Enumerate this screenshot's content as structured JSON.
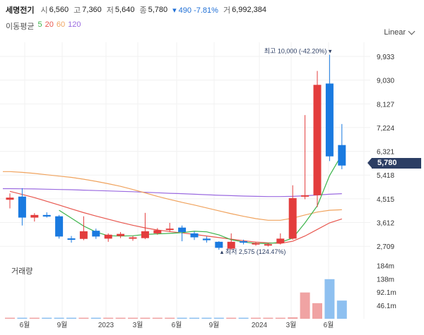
{
  "header": {
    "stock_name": "세명전기",
    "open_label": "시",
    "open_value": "6,560",
    "high_label": "고",
    "high_value": "7,360",
    "low_label": "저",
    "low_value": "5,640",
    "close_label": "종",
    "close_value": "5,780",
    "change": "▾ 490 -7.81%",
    "volume_label": "거",
    "volume_value": "6,992,384"
  },
  "ma_legend": {
    "title": "이동평균",
    "periods": [
      "5",
      "20",
      "60",
      "120"
    ]
  },
  "scale_button": "Linear",
  "volume_title": "거래량",
  "current_price": "5,780",
  "colors": {
    "up": "#e33d3d",
    "down": "#1a7ae0",
    "ma5": "#3cb44b",
    "ma20": "#e8574f",
    "ma60": "#f0a35e",
    "ma120": "#9b6be0",
    "badge": "#2c3e64",
    "vol_up": "#f0a3a3",
    "vol_down": "#8ec0f0"
  },
  "annotations": {
    "high": "최고 10,000 (-42.20%) ▾",
    "low": "▴ 최저 2,575 (124.47%)"
  },
  "chart_data": {
    "type": "candlestick",
    "x_tick_labels": [
      "6월",
      "9월",
      "2023",
      "3월",
      "6월",
      "9월",
      "2024",
      "3월",
      "6월"
    ],
    "y_ticks": [
      "9,933",
      "9,030",
      "8,127",
      "7,224",
      "6,321",
      "5,418",
      "4,515",
      "3,612",
      "2,709"
    ],
    "y_ticks_num": [
      9933,
      9030,
      8127,
      7224,
      6321,
      5418,
      4515,
      3612,
      2709
    ],
    "volume_ticks": [
      "184m",
      "138m",
      "92.1m",
      "46.1m"
    ],
    "volume_ticks_num": [
      184,
      138,
      92.1,
      46.1
    ],
    "candles": [
      {
        "o": 4480,
        "h": 4720,
        "l": 4150,
        "c": 4560
      },
      {
        "o": 4600,
        "h": 4920,
        "l": 3500,
        "c": 3800
      },
      {
        "o": 3800,
        "h": 3970,
        "l": 3650,
        "c": 3900
      },
      {
        "o": 3900,
        "h": 4000,
        "l": 3800,
        "c": 3840
      },
      {
        "o": 3850,
        "h": 3900,
        "l": 3000,
        "c": 3080
      },
      {
        "o": 3010,
        "h": 3100,
        "l": 2850,
        "c": 2960
      },
      {
        "o": 2990,
        "h": 3850,
        "l": 2940,
        "c": 3280
      },
      {
        "o": 3300,
        "h": 3380,
        "l": 2990,
        "c": 3080
      },
      {
        "o": 3000,
        "h": 3200,
        "l": 2880,
        "c": 3150
      },
      {
        "o": 3100,
        "h": 3250,
        "l": 3020,
        "c": 3180
      },
      {
        "o": 3010,
        "h": 3100,
        "l": 2920,
        "c": 3050
      },
      {
        "o": 3020,
        "h": 3980,
        "l": 2980,
        "c": 3280
      },
      {
        "o": 3200,
        "h": 3400,
        "l": 3150,
        "c": 3320
      },
      {
        "o": 3330,
        "h": 3600,
        "l": 3250,
        "c": 3380
      },
      {
        "o": 3420,
        "h": 3500,
        "l": 2900,
        "c": 3250
      },
      {
        "o": 3200,
        "h": 3280,
        "l": 2950,
        "c": 3050
      },
      {
        "o": 3000,
        "h": 3080,
        "l": 2850,
        "c": 2940
      },
      {
        "o": 2880,
        "h": 2900,
        "l": 2575,
        "c": 2650
      },
      {
        "o": 2620,
        "h": 3200,
        "l": 2575,
        "c": 2880
      },
      {
        "o": 2900,
        "h": 2960,
        "l": 2780,
        "c": 2850
      },
      {
        "o": 2790,
        "h": 2870,
        "l": 2730,
        "c": 2830
      },
      {
        "o": 2780,
        "h": 2830,
        "l": 2700,
        "c": 2790
      },
      {
        "o": 2830,
        "h": 3200,
        "l": 2780,
        "c": 3000
      },
      {
        "o": 3000,
        "h": 5030,
        "l": 2960,
        "c": 4540
      },
      {
        "o": 4600,
        "h": 7700,
        "l": 4500,
        "c": 4650
      },
      {
        "o": 4650,
        "h": 9380,
        "l": 4200,
        "c": 8850
      },
      {
        "o": 8900,
        "h": 10000,
        "l": 5950,
        "c": 6130
      },
      {
        "o": 6560,
        "h": 7360,
        "l": 5640,
        "c": 5780
      }
    ],
    "volume": [
      2,
      1,
      0.5,
      0.5,
      0.5,
      0.5,
      0.5,
      0.5,
      0.5,
      0.5,
      0.5,
      0.5,
      1,
      0.5,
      0.5,
      0.5,
      0.5,
      0.5,
      0.5,
      0.5,
      0.5,
      0.5,
      0.5,
      5,
      91,
      54,
      137,
      63
    ],
    "ma": {
      "5": [
        null,
        null,
        null,
        null,
        4080,
        3780,
        3480,
        3250,
        3110,
        3100,
        3110,
        3160,
        3180,
        3200,
        3230,
        3280,
        3260,
        3140,
        2960,
        2870,
        2820,
        2820,
        2860,
        3020,
        3600,
        4250,
        5400,
        6200
      ],
      "20": [
        4800,
        4680,
        4560,
        4420,
        4280,
        4130,
        3990,
        3860,
        3740,
        3620,
        3510,
        3410,
        3330,
        3270,
        3220,
        3160,
        3100,
        3040,
        2980,
        2920,
        2870,
        2840,
        2820,
        2900,
        3100,
        3350,
        3600,
        3750
      ],
      "60": [
        5550,
        5520,
        5480,
        5430,
        5380,
        5330,
        5260,
        5180,
        5090,
        4990,
        4870,
        4740,
        4610,
        4490,
        4380,
        4280,
        4170,
        4060,
        3950,
        3850,
        3760,
        3700,
        3700,
        3780,
        3900,
        4010,
        4080,
        4100
      ],
      "120": [
        4900,
        4895,
        4890,
        4880,
        4870,
        4860,
        4845,
        4830,
        4815,
        4800,
        4785,
        4765,
        4745,
        4725,
        4710,
        4690,
        4670,
        4650,
        4635,
        4620,
        4610,
        4600,
        4600,
        4610,
        4630,
        4660,
        4690,
        4710
      ]
    }
  }
}
